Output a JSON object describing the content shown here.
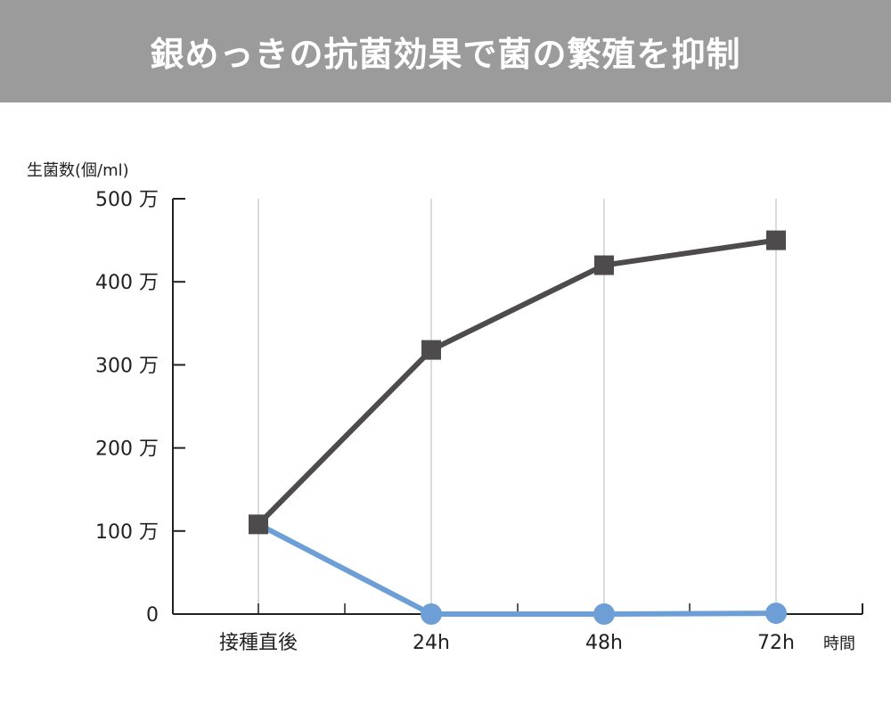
{
  "banner": {
    "title": "銀めっきの抗菌効果で菌の繁殖を抑制"
  },
  "chart_data": {
    "type": "line",
    "title": "銀めっきの抗菌効果で菌の繁殖を抑制",
    "ylabel": "生菌数(個/ml)",
    "xlabel": "時間",
    "categories": [
      "接種直後",
      "24h",
      "48h",
      "72h"
    ],
    "ylim": [
      0,
      5000000
    ],
    "y_ticks": [
      {
        "value": 0,
        "label": "0"
      },
      {
        "value": 1000000,
        "label": "100 万"
      },
      {
        "value": 2000000,
        "label": "200 万"
      },
      {
        "value": 3000000,
        "label": "300 万"
      },
      {
        "value": 4000000,
        "label": "400 万"
      },
      {
        "value": 5000000,
        "label": "500 万"
      }
    ],
    "grid": "vertical",
    "series": [
      {
        "values": [
          1080000,
          3180000,
          4200000,
          4500000
        ],
        "color": "#4e4b4c",
        "marker": "square"
      },
      {
        "values": [
          1080000,
          0,
          0,
          10000
        ],
        "color": "#6d9fd6",
        "marker": "circle"
      }
    ]
  }
}
